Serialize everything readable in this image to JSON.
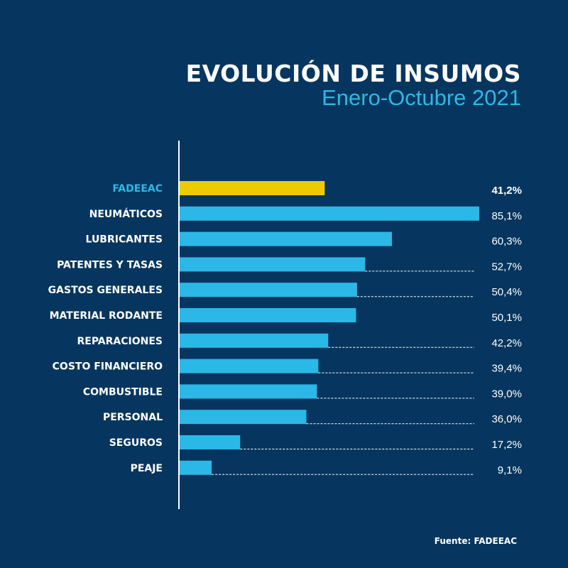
{
  "title": "EVOLUCIÓN DE INSUMOS",
  "subtitle": "Enero-Octubre 2021",
  "source": "Fuente: FADEEAC",
  "colors": {
    "background": "#06365f",
    "highlight": "#eecb00",
    "bar": "#2bb8e6",
    "highlight_label": "#2bb8e6",
    "text": "#ffffff"
  },
  "chart_data": {
    "type": "bar",
    "orientation": "horizontal",
    "title": "EVOLUCIÓN DE INSUMOS",
    "subtitle": "Enero-Octubre 2021",
    "unit": "%",
    "categories": [
      "FADEEAC",
      "NEUMÁTICOS",
      "LUBRICANTES",
      "PATENTES Y TASAS",
      "GASTOS GENERALES",
      "MATERIAL RODANTE",
      "REPARACIONES",
      "COSTO FINANCIERO",
      "COMBUSTIBLE",
      "PERSONAL",
      "SEGUROS",
      "PEAJE"
    ],
    "values": [
      41.2,
      85.1,
      60.3,
      52.7,
      50.4,
      50.1,
      42.2,
      39.4,
      39.0,
      36.0,
      17.2,
      9.1
    ],
    "value_labels": [
      "41,2%",
      "85,1%",
      "60,3%",
      "52,7%",
      "50,4%",
      "50,1%",
      "42,2%",
      "39,4%",
      "39,0%",
      "36,0%",
      "17,2%",
      "9,1%"
    ],
    "highlighted": [
      "FADEEAC"
    ],
    "dotted_leaders": [
      "PATENTES Y TASAS",
      "GASTOS GENERALES",
      "REPARACIONES",
      "COSTO FINANCIERO",
      "COMBUSTIBLE",
      "PERSONAL",
      "SEGUROS",
      "PEAJE"
    ],
    "grid": false,
    "legend": "none"
  }
}
